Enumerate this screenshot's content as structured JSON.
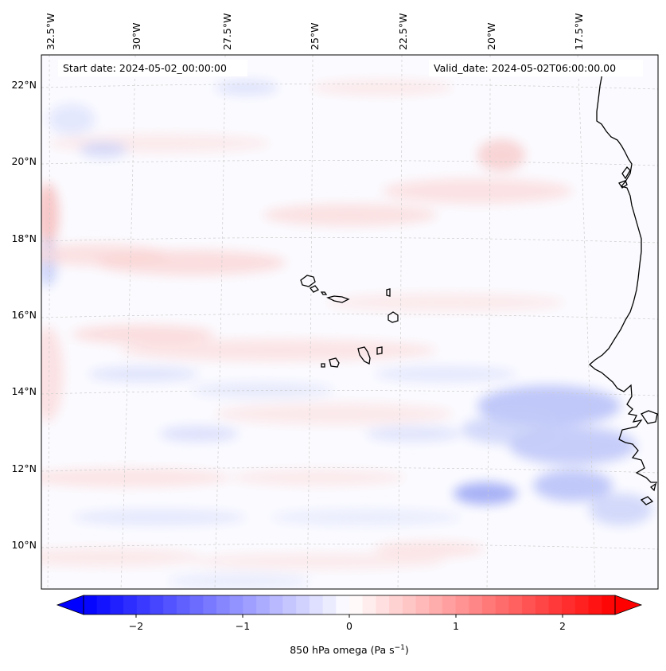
{
  "map": {
    "start_label": "Start date: 2024-05-02_00:00:00",
    "valid_label": "Valid_date: 2024-05-02T06:00:00.00",
    "lon_labels": [
      "32.5°W",
      "30°W",
      "27.5°W",
      "25°W",
      "22.5°W",
      "20°W",
      "17.5°W"
    ],
    "lat_labels": [
      "22°N",
      "20°N",
      "18°N",
      "16°N",
      "14°N",
      "12°N",
      "10°N"
    ],
    "colors": {
      "negative": "#0000ff",
      "positive": "#ff0000",
      "neutral": "#ffffff",
      "coastline": "#000000",
      "grid": "#c8c8c8"
    }
  },
  "colorbar": {
    "ticks": [
      "−2",
      "−1",
      "0",
      "1",
      "2"
    ],
    "label_prefix": "850 hPa omega (Pa s",
    "label_exp": "−1",
    "label_suffix": ")"
  }
}
